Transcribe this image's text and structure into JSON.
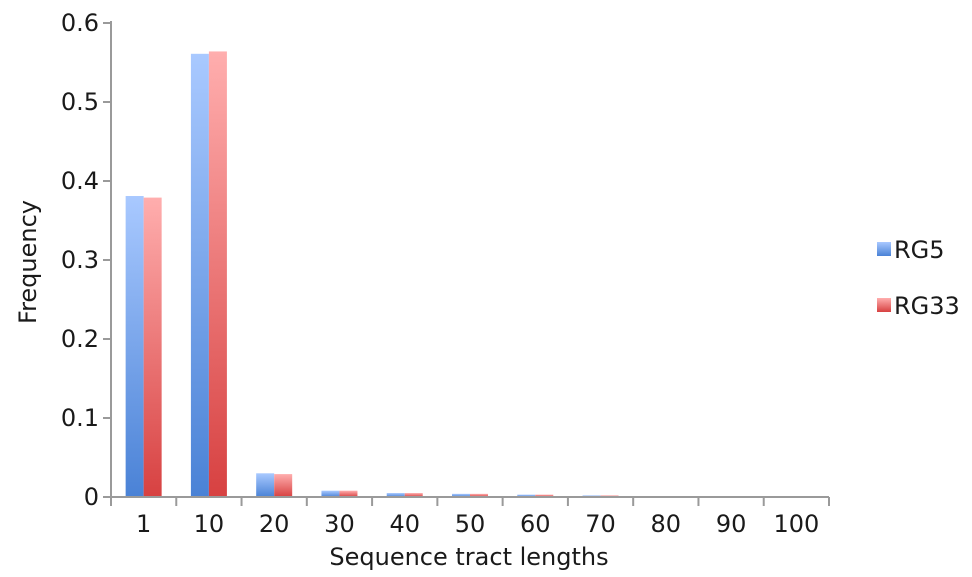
{
  "chart_data": {
    "type": "bar",
    "categories": [
      "1",
      "10",
      "20",
      "30",
      "40",
      "50",
      "60",
      "70",
      "80",
      "90",
      "100"
    ],
    "series": [
      {
        "name": "RG5",
        "values": [
          0.381,
          0.561,
          0.03,
          0.008,
          0.005,
          0.004,
          0.003,
          0.002,
          0.001,
          0.001,
          0.001
        ],
        "color_top": "#a9c9ff",
        "color_bottom": "#4a82d6"
      },
      {
        "name": "RG33",
        "values": [
          0.379,
          0.564,
          0.029,
          0.008,
          0.005,
          0.004,
          0.003,
          0.002,
          0.001,
          0.001,
          0.001
        ],
        "color_top": "#ffaeae",
        "color_bottom": "#d74141"
      }
    ],
    "xlabel": "Sequence tract lengths",
    "ylabel": "Frequency",
    "ylim": [
      0,
      0.6
    ],
    "yticks": [
      0,
      0.1,
      0.2,
      0.3,
      0.4,
      0.5,
      0.6
    ],
    "ytick_labels": [
      "0",
      "0.1",
      "0.2",
      "0.3",
      "0.4",
      "0.5",
      "0.6"
    ],
    "grid": false,
    "legend_position": "right",
    "axis_color": "#9a9a9a"
  }
}
